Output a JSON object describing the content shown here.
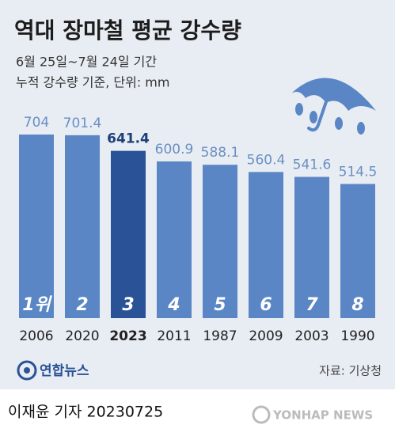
{
  "chart_data": {
    "type": "bar",
    "title": "역대 장마철 평균 강수량",
    "subtitle": [
      "6월 25일~7월 24일 기간",
      "누적 강수량 기준, 단위: mm"
    ],
    "categories": [
      "2006",
      "2020",
      "2023",
      "2011",
      "1987",
      "2009",
      "2003",
      "1990"
    ],
    "values": [
      704,
      701.4,
      641.4,
      600.9,
      588.1,
      560.4,
      541.6,
      514.5
    ],
    "value_labels": [
      "704",
      "701.4",
      "641.4",
      "600.9",
      "588.1",
      "560.4",
      "541.6",
      "514.5"
    ],
    "ranks": [
      "1위",
      "2",
      "3",
      "4",
      "5",
      "6",
      "7",
      "8"
    ],
    "highlight": "2023",
    "color": "#5b86c6",
    "highlight_color": "#2a5296",
    "logo": "연합뉴스",
    "source": "자료: 기상청",
    "credit": "이재윤 기자  20230725",
    "watermark": "YONHAP NEWS"
  }
}
